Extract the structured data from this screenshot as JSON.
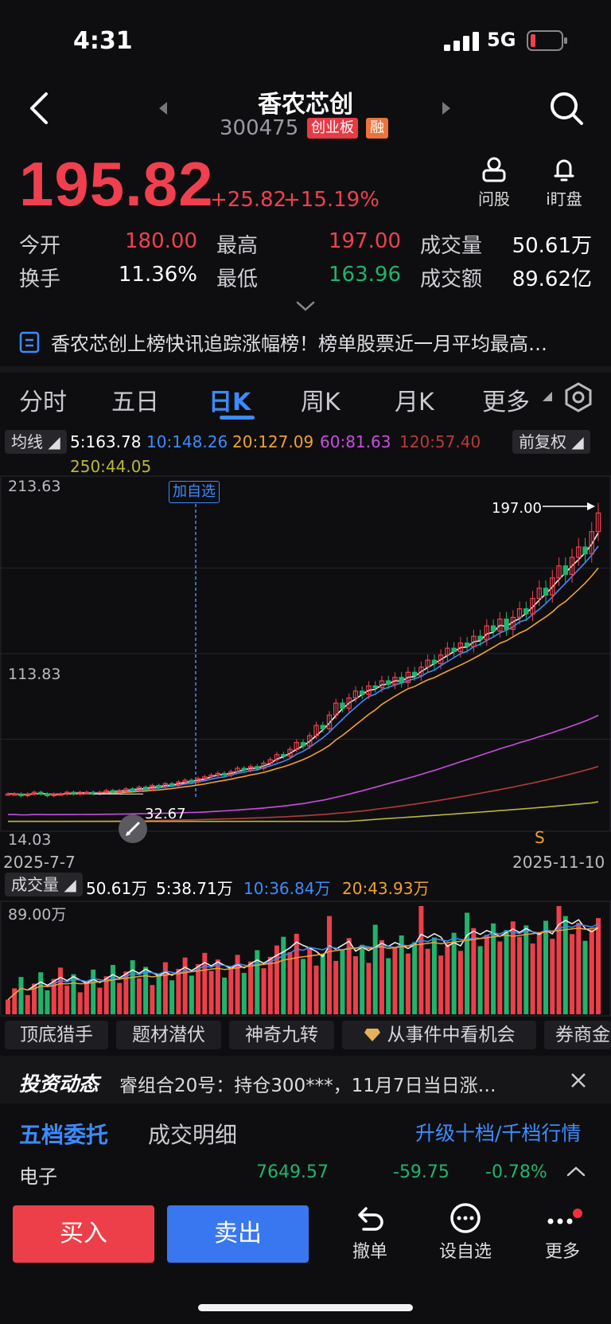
{
  "status": {
    "time": "4:31",
    "network": "5G"
  },
  "header": {
    "title": "香农芯创",
    "code": "300475",
    "tag_board": "创业板",
    "tag_margin": "融"
  },
  "quote": {
    "price": "195.82",
    "change": "+25.82",
    "change_pct": "+15.19%"
  },
  "tools": {
    "ask": "问股",
    "watch": "i盯盘"
  },
  "stats": {
    "open_label": "今开",
    "open": "180.00",
    "high_label": "最高",
    "high": "197.00",
    "vol_label": "成交量",
    "vol": "50.61万",
    "turnover_label": "换手",
    "turnover": "11.36%",
    "low_label": "最低",
    "low": "163.96",
    "amount_label": "成交额",
    "amount": "89.62亿"
  },
  "news": {
    "text": "香农芯创上榜快讯追踪涨幅榜！榜单股票近一月平均最高…"
  },
  "tabs": {
    "t1": "分时",
    "t2": "五日",
    "t3": "日K",
    "t4": "周K",
    "t5": "月K",
    "t6": "更多"
  },
  "ma": {
    "label": "均线",
    "ma5": "5:163.78",
    "ma10": "10:148.26",
    "ma20": "20:127.09",
    "ma60": "60:81.63",
    "ma120": "120:57.40",
    "ma250": "250:44.05",
    "adjust": "前复权"
  },
  "kchart": {
    "y_top": "213.63",
    "y_mid": "113.83",
    "y_bot": "14.03",
    "date_start": "2025-7-7",
    "date_end": "2025-11-10",
    "max_label": "197.00",
    "min_label": "32.67",
    "add_watch": "加自选",
    "s_marker": "S"
  },
  "volume": {
    "label": "成交量",
    "vol": "50.61万",
    "ma5": "5:38.71万",
    "ma10": "10:36.84万",
    "ma20": "20:43.93万",
    "y_top": "89.00万"
  },
  "chips": {
    "c1": "顶底猎手",
    "c2": "题材潜伏",
    "c3": "神奇九转",
    "c4": "从事件中看机会",
    "c5": "券商金"
  },
  "invest": {
    "brand": "投资动态",
    "text": "睿组合20号：持仓300***，11月7日当日涨…"
  },
  "order": {
    "tab1": "五档委托",
    "tab2": "成交明细",
    "upgrade": "升级十档/千档行情"
  },
  "sector": {
    "name": "电子",
    "value": "7649.57",
    "change": "-59.75",
    "pct": "-0.78%"
  },
  "bottom": {
    "buy": "买入",
    "sell": "卖出",
    "cancel": "撤单",
    "set_watch": "设自选",
    "more": "更多"
  },
  "colors": {
    "up": "#f0404f",
    "down": "#1fb46c",
    "accent": "#3d8bff"
  },
  "chart_data": {
    "type": "candlestick",
    "title": "",
    "x": [
      "2025-7-7",
      "2025-11-10"
    ],
    "ylim": [
      14.03,
      213.63
    ],
    "ohlc_last": {
      "open": 180.0,
      "high": 197.0,
      "low": 163.96,
      "close": 195.82
    },
    "series": [
      {
        "name": "MA5",
        "value": 163.78
      },
      {
        "name": "MA10",
        "value": 148.26
      },
      {
        "name": "MA20",
        "value": 127.09
      },
      {
        "name": "MA60",
        "value": 81.63
      },
      {
        "name": "MA120",
        "value": 57.4
      },
      {
        "name": "MA250",
        "value": 44.05
      }
    ],
    "closes": [
      32,
      32,
      31,
      32,
      33,
      32,
      31,
      32,
      32,
      33,
      32,
      33,
      33,
      32,
      33,
      34,
      33,
      34,
      35,
      34,
      36,
      35,
      37,
      36,
      38,
      37,
      39,
      40,
      39,
      41,
      42,
      43,
      44,
      43,
      45,
      47,
      46,
      48,
      47,
      50,
      52,
      55,
      54,
      58,
      62,
      60,
      66,
      72,
      70,
      78,
      85,
      82,
      88,
      92,
      90,
      95,
      94,
      98,
      96,
      100,
      97,
      103,
      101,
      106,
      110,
      108,
      113,
      117,
      115,
      120,
      118,
      124,
      122,
      130,
      127,
      134,
      128,
      135,
      140,
      137,
      146,
      152,
      148,
      158,
      165,
      160,
      170,
      176,
      172,
      185,
      195.82
    ]
  }
}
